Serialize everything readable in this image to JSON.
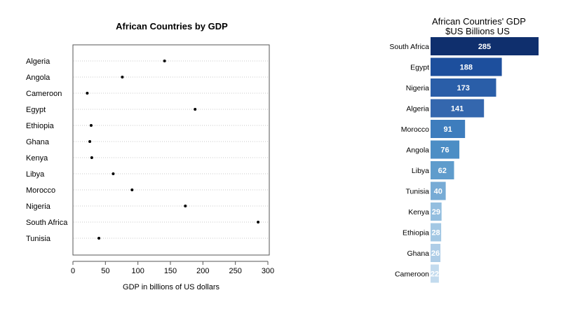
{
  "chart_data": [
    {
      "type": "scatter",
      "title": "African Countries by GDP",
      "xlabel": "GDP in billions of US dollars",
      "ylabel": "",
      "xlim": [
        0,
        300
      ],
      "xticks": [
        0,
        50,
        100,
        150,
        200,
        250,
        300
      ],
      "categories": [
        "Algeria",
        "Angola",
        "Cameroon",
        "Egypt",
        "Ethiopia",
        "Ghana",
        "Kenya",
        "Libya",
        "Morocco",
        "Nigeria",
        "South Africa",
        "Tunisia"
      ],
      "values": [
        141,
        76,
        22,
        188,
        28,
        26,
        29,
        62,
        91,
        173,
        285,
        40
      ],
      "grid": "dotted horizontal guide lines"
    },
    {
      "type": "bar",
      "orientation": "horizontal",
      "title": "African Countries' GDP",
      "subtitle": "$US Billions US",
      "categories": [
        "South Africa",
        "Egypt",
        "Nigeria",
        "Algeria",
        "Morocco",
        "Angola",
        "Libya",
        "Tunisia",
        "Kenya",
        "Ethiopia",
        "Ghana",
        "Cameroon"
      ],
      "values": [
        285,
        188,
        173,
        141,
        91,
        76,
        62,
        40,
        29,
        28,
        26,
        22
      ],
      "data_labels": [
        "285",
        "188",
        "173",
        "141",
        "91",
        "76",
        "62",
        "40",
        "29",
        "28",
        "26",
        "22"
      ],
      "colors": [
        "#0f2f6d",
        "#1d4f9d",
        "#2a5ea8",
        "#3467ae",
        "#3e7dbd",
        "#4c8ec5",
        "#5f9ccc",
        "#77abd5",
        "#93bedf",
        "#a3c8e4",
        "#aecde7",
        "#c3dbee"
      ]
    }
  ]
}
